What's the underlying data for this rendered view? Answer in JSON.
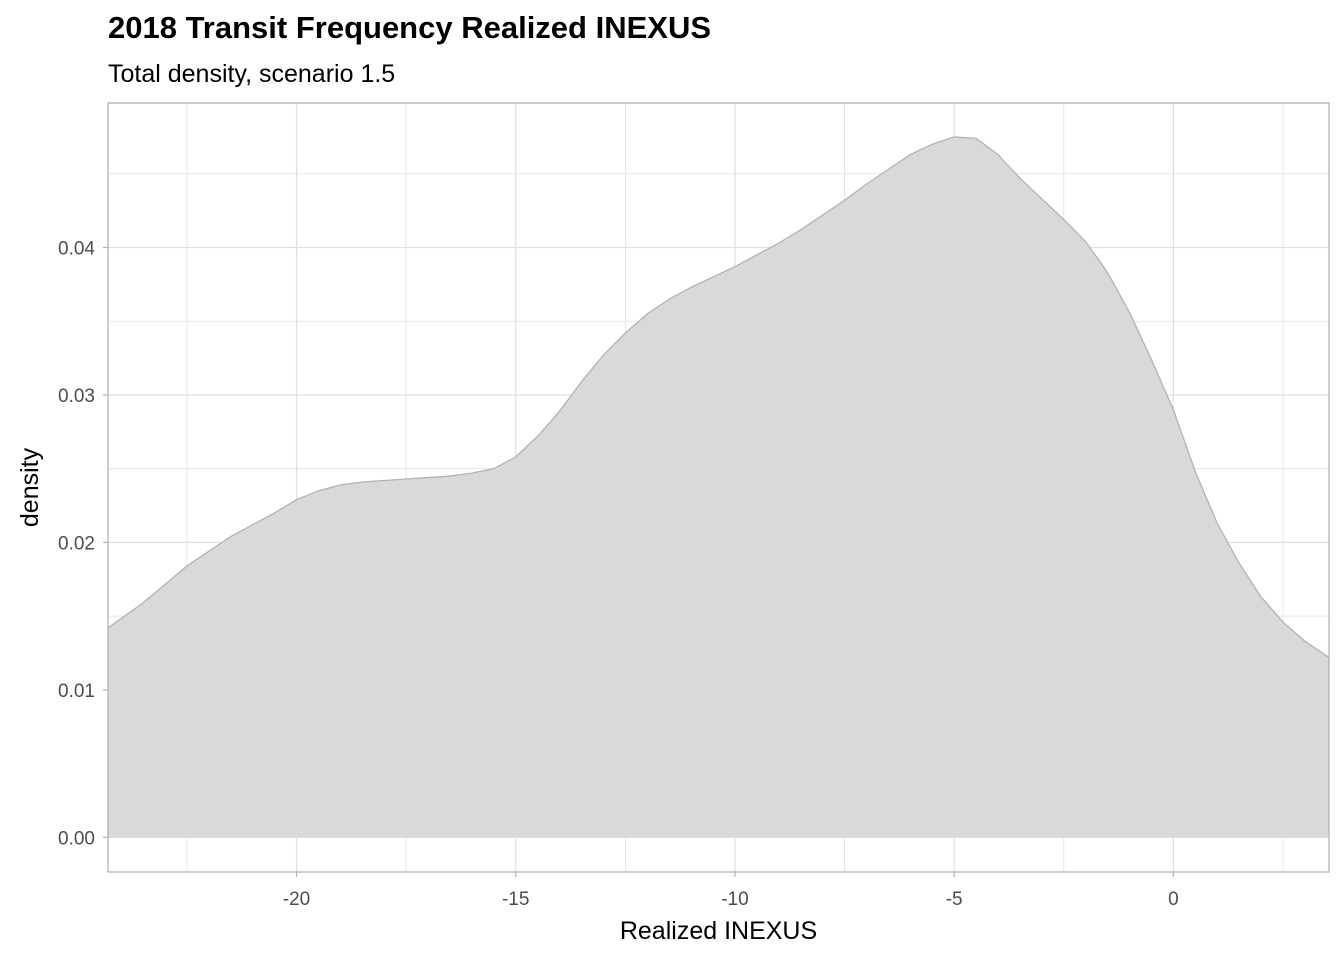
{
  "chart_data": {
    "type": "area",
    "title": "2018 Transit Frequency Realized INEXUS",
    "subtitle": "Total density, scenario 1.5",
    "xlabel": "Realized INEXUS",
    "ylabel": "density",
    "xlim": [
      -24.3,
      3.55
    ],
    "ylim": [
      -0.00235,
      0.0498
    ],
    "x_ticks": [
      -20,
      -15,
      -10,
      -5,
      0
    ],
    "x_tick_labels": [
      "-20",
      "-15",
      "-10",
      "-5",
      "0"
    ],
    "y_ticks": [
      0.0,
      0.01,
      0.02,
      0.03,
      0.04
    ],
    "y_tick_labels": [
      "0.00",
      "0.01",
      "0.02",
      "0.03",
      "0.04"
    ],
    "grid": true,
    "colors": {
      "fill": "#d9d9d9",
      "stroke": "#b3b3b3",
      "grid": "#e0e0e0",
      "panel_border": "#b3b3b3"
    },
    "series": [
      {
        "x": [
          -24.3,
          -23.5,
          -22.5,
          -21.5,
          -20.5,
          -20.0,
          -19.5,
          -19.0,
          -18.5,
          -18.0,
          -17.5,
          -17.0,
          -16.5,
          -16.0,
          -15.5,
          -15.0,
          -14.5,
          -14.0,
          -13.5,
          -13.0,
          -12.5,
          -12.0,
          -11.5,
          -11.0,
          -10.5,
          -10.0,
          -9.5,
          -9.0,
          -8.5,
          -8.0,
          -7.5,
          -7.0,
          -6.5,
          -6.0,
          -5.5,
          -5.0,
          -4.5,
          -4.0,
          -3.5,
          -3.0,
          -2.5,
          -2.0,
          -1.5,
          -1.0,
          -0.5,
          0.0,
          0.5,
          1.0,
          1.5,
          2.0,
          2.5,
          3.0,
          3.55
        ],
        "y": [
          0.0142,
          0.0159,
          0.0184,
          0.0204,
          0.022,
          0.0229,
          0.0235,
          0.0239,
          0.0241,
          0.0242,
          0.0243,
          0.0244,
          0.0245,
          0.0247,
          0.025,
          0.0258,
          0.0272,
          0.0289,
          0.0309,
          0.0327,
          0.0342,
          0.0355,
          0.0365,
          0.0373,
          0.038,
          0.0387,
          0.0395,
          0.0403,
          0.0412,
          0.0422,
          0.0432,
          0.0443,
          0.0453,
          0.0463,
          0.047,
          0.0475,
          0.0474,
          0.0463,
          0.0447,
          0.0433,
          0.0419,
          0.0404,
          0.0383,
          0.0356,
          0.0324,
          0.029,
          0.0248,
          0.0213,
          0.0186,
          0.0163,
          0.0146,
          0.0133,
          0.0122
        ]
      }
    ]
  }
}
